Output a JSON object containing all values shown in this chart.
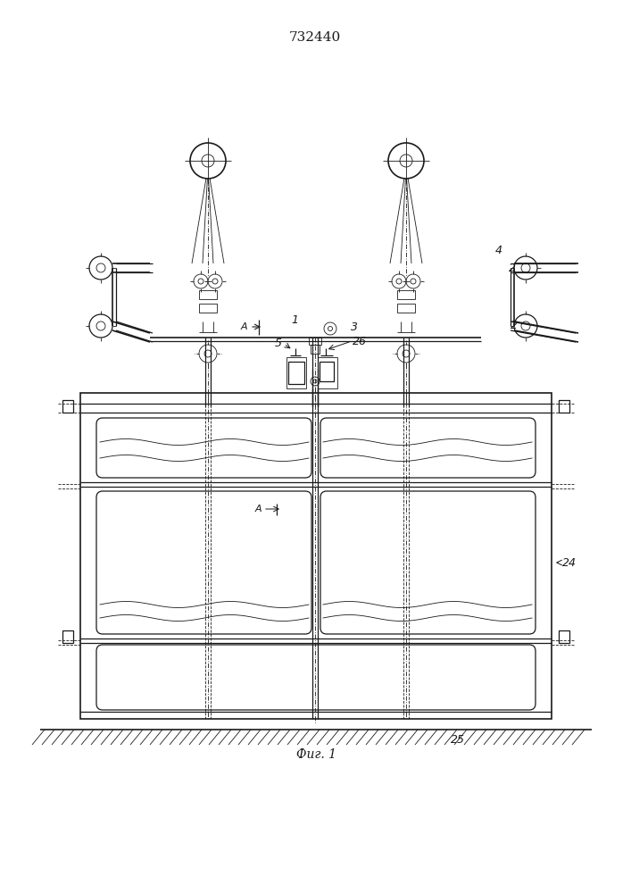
{
  "title": "732440",
  "fig_label": "Фиг. 1",
  "bg_color": "#ffffff",
  "line_color": "#1a1a1a",
  "title_fontsize": 11,
  "label_fontsize": 9
}
